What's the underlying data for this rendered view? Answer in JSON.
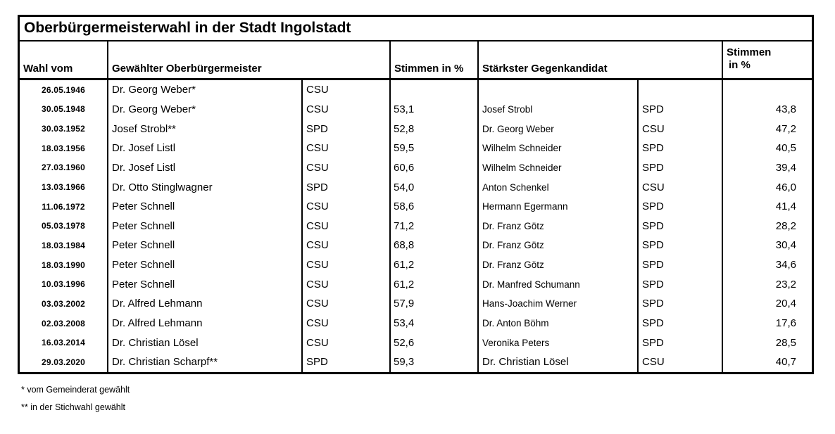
{
  "title": "Oberbürgermeisterwahl in der Stadt Ingolstadt",
  "table": {
    "headers": {
      "wahl_vom": "Wahl vom",
      "gewaehlter": "Gewählter Oberbürgermeister",
      "stimmen1": "Stimmen in %",
      "gegenkandidat": "Stärkster Gegenkandidat",
      "stimmen2_line1": "Stimmen",
      "stimmen2_line2": "in %"
    },
    "rows": [
      {
        "date": "26.05.1946",
        "winner": "Dr. Georg Weber*",
        "winner_party": "CSU",
        "winner_pct": "",
        "opponent": "",
        "opponent_party": "",
        "opponent_pct": ""
      },
      {
        "date": "30.05.1948",
        "winner": "Dr. Georg Weber*",
        "winner_party": "CSU",
        "winner_pct": "53,1",
        "opponent": "Josef Strobl",
        "opponent_party": "SPD",
        "opponent_pct": "43,8"
      },
      {
        "date": "30.03.1952",
        "winner": "Josef Strobl**",
        "winner_party": "SPD",
        "winner_pct": "52,8",
        "opponent": "Dr. Georg Weber",
        "opponent_party": "CSU",
        "opponent_pct": "47,2"
      },
      {
        "date": "18.03.1956",
        "winner": "Dr. Josef Listl",
        "winner_party": "CSU",
        "winner_pct": "59,5",
        "opponent": "Wilhelm Schneider",
        "opponent_party": "SPD",
        "opponent_pct": "40,5"
      },
      {
        "date": "27.03.1960",
        "winner": "Dr. Josef Listl",
        "winner_party": "CSU",
        "winner_pct": "60,6",
        "opponent": "Wilhelm Schneider",
        "opponent_party": "SPD",
        "opponent_pct": "39,4"
      },
      {
        "date": "13.03.1966",
        "winner": "Dr. Otto Stinglwagner",
        "winner_party": "SPD",
        "winner_pct": "54,0",
        "opponent": "Anton Schenkel",
        "opponent_party": "CSU",
        "opponent_pct": "46,0"
      },
      {
        "date": "11.06.1972",
        "winner": "Peter Schnell",
        "winner_party": "CSU",
        "winner_pct": "58,6",
        "opponent": "Hermann Egermann",
        "opponent_party": "SPD",
        "opponent_pct": "41,4"
      },
      {
        "date": "05.03.1978",
        "winner": "Peter Schnell",
        "winner_party": "CSU",
        "winner_pct": "71,2",
        "opponent": "Dr. Franz Götz",
        "opponent_party": "SPD",
        "opponent_pct": "28,2"
      },
      {
        "date": "18.03.1984",
        "winner": "Peter Schnell",
        "winner_party": "CSU",
        "winner_pct": "68,8",
        "opponent": "Dr. Franz Götz",
        "opponent_party": "SPD",
        "opponent_pct": "30,4"
      },
      {
        "date": "18.03.1990",
        "winner": "Peter Schnell",
        "winner_party": "CSU",
        "winner_pct": "61,2",
        "opponent": "Dr. Franz Götz",
        "opponent_party": "SPD",
        "opponent_pct": "34,6"
      },
      {
        "date": "10.03.1996",
        "winner": "Peter Schnell",
        "winner_party": "CSU",
        "winner_pct": "61,2",
        "opponent": "Dr. Manfred Schumann",
        "opponent_party": "SPD",
        "opponent_pct": "23,2"
      },
      {
        "date": "03.03.2002",
        "winner": "Dr. Alfred Lehmann",
        "winner_party": "CSU",
        "winner_pct": "57,9",
        "opponent": "Hans-Joachim Werner",
        "opponent_party": "SPD",
        "opponent_pct": "20,4"
      },
      {
        "date": "02.03.2008",
        "winner": "Dr. Alfred Lehmann",
        "winner_party": "CSU",
        "winner_pct": "53,4",
        "opponent": "Dr. Anton Böhm",
        "opponent_party": "SPD",
        "opponent_pct": "17,6"
      },
      {
        "date": "16.03.2014",
        "winner": "Dr. Christian Lösel",
        "winner_party": "CSU",
        "winner_pct": "52,6",
        "opponent": "Veronika Peters",
        "opponent_party": "SPD",
        "opponent_pct": "28,5"
      },
      {
        "date": "29.03.2020",
        "winner": "Dr. Christian Scharpf**",
        "winner_party": "SPD",
        "winner_pct": "59,3",
        "opponent": "Dr. Christian Lösel",
        "opponent_party": "CSU",
        "opponent_pct": "40,7"
      }
    ]
  },
  "footnotes": {
    "note1": "* vom Gemeinderat gewählt",
    "note2": "** in der Stichwahl gewählt"
  },
  "colors": {
    "border": "#000000",
    "background": "#ffffff",
    "text": "#000000"
  }
}
